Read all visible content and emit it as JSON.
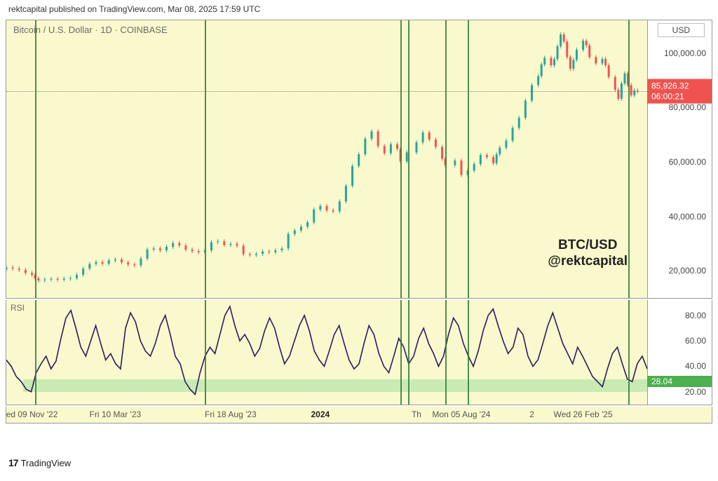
{
  "header": {
    "publisher": "rektcapital published on TradingView.com, Mar 08, 2025 17:59 UTC"
  },
  "price_chart": {
    "symbol": "Bitcoin / U.S. Dollar · 1D · COINBASE",
    "currency": "USD",
    "current_price": "85,926.32",
    "countdown": "06:00:21",
    "watermark_line1": "BTC/USD",
    "watermark_line2": "@rektcapital",
    "ylim": [
      10000,
      112000
    ],
    "yticks": [
      20000,
      40000,
      60000,
      80000,
      100000
    ],
    "ytick_labels": [
      "20,000.00",
      "40,000.00",
      "60,000.00",
      "80,000.00",
      "100,000.00"
    ],
    "background_color": "#f9f9cd",
    "up_color": "#26a69a",
    "down_color": "#ef5350",
    "vline_color": "#2e7d32",
    "vline_positions_pct": [
      4.5,
      31.0,
      61.5,
      62.7,
      68.5,
      72.0,
      97.0
    ],
    "data": [
      {
        "x": 0.0,
        "o": 20500,
        "c": 21200
      },
      {
        "x": 0.01,
        "o": 21200,
        "c": 20800
      },
      {
        "x": 0.02,
        "o": 20800,
        "c": 20300
      },
      {
        "x": 0.03,
        "o": 20300,
        "c": 19200
      },
      {
        "x": 0.04,
        "o": 19200,
        "c": 18500
      },
      {
        "x": 0.045,
        "o": 18500,
        "c": 17200
      },
      {
        "x": 0.05,
        "o": 17200,
        "c": 16500
      },
      {
        "x": 0.06,
        "o": 16500,
        "c": 16800
      },
      {
        "x": 0.07,
        "o": 16800,
        "c": 17000
      },
      {
        "x": 0.08,
        "o": 17000,
        "c": 16700
      },
      {
        "x": 0.09,
        "o": 16700,
        "c": 17100
      },
      {
        "x": 0.1,
        "o": 17100,
        "c": 17300
      },
      {
        "x": 0.11,
        "o": 17300,
        "c": 18500
      },
      {
        "x": 0.12,
        "o": 18500,
        "c": 20800
      },
      {
        "x": 0.13,
        "o": 20800,
        "c": 22500
      },
      {
        "x": 0.14,
        "o": 22500,
        "c": 23200
      },
      {
        "x": 0.15,
        "o": 23200,
        "c": 22600
      },
      {
        "x": 0.16,
        "o": 22600,
        "c": 23800
      },
      {
        "x": 0.17,
        "o": 23800,
        "c": 24200
      },
      {
        "x": 0.18,
        "o": 24200,
        "c": 23100
      },
      {
        "x": 0.19,
        "o": 23100,
        "c": 22300
      },
      {
        "x": 0.2,
        "o": 22300,
        "c": 22000
      },
      {
        "x": 0.21,
        "o": 22000,
        "c": 24500
      },
      {
        "x": 0.22,
        "o": 24500,
        "c": 27800
      },
      {
        "x": 0.23,
        "o": 27800,
        "c": 28200
      },
      {
        "x": 0.24,
        "o": 28200,
        "c": 27500
      },
      {
        "x": 0.25,
        "o": 27500,
        "c": 28800
      },
      {
        "x": 0.26,
        "o": 28800,
        "c": 30200
      },
      {
        "x": 0.27,
        "o": 30200,
        "c": 29300
      },
      {
        "x": 0.28,
        "o": 29300,
        "c": 27800
      },
      {
        "x": 0.29,
        "o": 27800,
        "c": 27200
      },
      {
        "x": 0.3,
        "o": 27200,
        "c": 26800
      },
      {
        "x": 0.31,
        "o": 26800,
        "c": 27500
      },
      {
        "x": 0.32,
        "o": 27500,
        "c": 30500
      },
      {
        "x": 0.33,
        "o": 30500,
        "c": 30800
      },
      {
        "x": 0.34,
        "o": 30800,
        "c": 29500
      },
      {
        "x": 0.35,
        "o": 29500,
        "c": 29900
      },
      {
        "x": 0.36,
        "o": 29900,
        "c": 29200
      },
      {
        "x": 0.37,
        "o": 29200,
        "c": 26100
      },
      {
        "x": 0.38,
        "o": 26100,
        "c": 25800
      },
      {
        "x": 0.39,
        "o": 25800,
        "c": 26200
      },
      {
        "x": 0.4,
        "o": 26200,
        "c": 27100
      },
      {
        "x": 0.41,
        "o": 27100,
        "c": 26800
      },
      {
        "x": 0.42,
        "o": 26800,
        "c": 27500
      },
      {
        "x": 0.43,
        "o": 27500,
        "c": 28200
      },
      {
        "x": 0.44,
        "o": 28200,
        "c": 33500
      },
      {
        "x": 0.45,
        "o": 33500,
        "c": 34800
      },
      {
        "x": 0.46,
        "o": 34800,
        "c": 36200
      },
      {
        "x": 0.47,
        "o": 36200,
        "c": 37800
      },
      {
        "x": 0.48,
        "o": 37800,
        "c": 42500
      },
      {
        "x": 0.49,
        "o": 42500,
        "c": 43800
      },
      {
        "x": 0.5,
        "o": 43800,
        "c": 42200
      },
      {
        "x": 0.51,
        "o": 42200,
        "c": 41800
      },
      {
        "x": 0.52,
        "o": 41800,
        "c": 45500
      },
      {
        "x": 0.53,
        "o": 45500,
        "c": 51200
      },
      {
        "x": 0.54,
        "o": 51200,
        "c": 58500
      },
      {
        "x": 0.55,
        "o": 58500,
        "c": 62800
      },
      {
        "x": 0.56,
        "o": 62800,
        "c": 68500
      },
      {
        "x": 0.57,
        "o": 68500,
        "c": 71200
      },
      {
        "x": 0.58,
        "o": 71200,
        "c": 65800
      },
      {
        "x": 0.59,
        "o": 65800,
        "c": 63200
      },
      {
        "x": 0.6,
        "o": 63200,
        "c": 66500
      },
      {
        "x": 0.61,
        "o": 66500,
        "c": 64800
      },
      {
        "x": 0.615,
        "o": 64800,
        "c": 60200
      },
      {
        "x": 0.625,
        "o": 60200,
        "c": 63500
      },
      {
        "x": 0.64,
        "o": 63500,
        "c": 67200
      },
      {
        "x": 0.65,
        "o": 67200,
        "c": 70800
      },
      {
        "x": 0.66,
        "o": 70800,
        "c": 68200
      },
      {
        "x": 0.67,
        "o": 68200,
        "c": 65500
      },
      {
        "x": 0.68,
        "o": 65500,
        "c": 61200
      },
      {
        "x": 0.685,
        "o": 61200,
        "c": 58800
      },
      {
        "x": 0.7,
        "o": 58800,
        "c": 60500
      },
      {
        "x": 0.71,
        "o": 60500,
        "c": 55200
      },
      {
        "x": 0.72,
        "o": 55200,
        "c": 56800
      },
      {
        "x": 0.73,
        "o": 56800,
        "c": 59200
      },
      {
        "x": 0.74,
        "o": 59200,
        "c": 62500
      },
      {
        "x": 0.75,
        "o": 62500,
        "c": 61800
      },
      {
        "x": 0.76,
        "o": 61800,
        "c": 59500
      },
      {
        "x": 0.765,
        "o": 59500,
        "c": 62800
      },
      {
        "x": 0.77,
        "o": 62800,
        "c": 65200
      },
      {
        "x": 0.78,
        "o": 65200,
        "c": 67800
      },
      {
        "x": 0.79,
        "o": 67800,
        "c": 72500
      },
      {
        "x": 0.8,
        "o": 72500,
        "c": 76200
      },
      {
        "x": 0.81,
        "o": 76200,
        "c": 82500
      },
      {
        "x": 0.82,
        "o": 82500,
        "c": 88200
      },
      {
        "x": 0.83,
        "o": 88200,
        "c": 91500
      },
      {
        "x": 0.835,
        "o": 91500,
        "c": 95800
      },
      {
        "x": 0.84,
        "o": 95800,
        "c": 98200
      },
      {
        "x": 0.85,
        "o": 98200,
        "c": 95500
      },
      {
        "x": 0.855,
        "o": 95500,
        "c": 97800
      },
      {
        "x": 0.86,
        "o": 97800,
        "c": 102500
      },
      {
        "x": 0.865,
        "o": 102500,
        "c": 106800
      },
      {
        "x": 0.87,
        "o": 106800,
        "c": 104200
      },
      {
        "x": 0.875,
        "o": 104200,
        "c": 98500
      },
      {
        "x": 0.88,
        "o": 98500,
        "c": 94200
      },
      {
        "x": 0.885,
        "o": 94200,
        "c": 97500
      },
      {
        "x": 0.89,
        "o": 97500,
        "c": 101200
      },
      {
        "x": 0.9,
        "o": 101200,
        "c": 104500
      },
      {
        "x": 0.905,
        "o": 104500,
        "c": 102800
      },
      {
        "x": 0.91,
        "o": 102800,
        "c": 98500
      },
      {
        "x": 0.92,
        "o": 98500,
        "c": 96200
      },
      {
        "x": 0.93,
        "o": 96200,
        "c": 97800
      },
      {
        "x": 0.935,
        "o": 97800,
        "c": 95500
      },
      {
        "x": 0.94,
        "o": 95500,
        "c": 91200
      },
      {
        "x": 0.95,
        "o": 91200,
        "c": 86500
      },
      {
        "x": 0.955,
        "o": 86500,
        "c": 83200
      },
      {
        "x": 0.96,
        "o": 83200,
        "c": 88800
      },
      {
        "x": 0.965,
        "o": 88800,
        "c": 92500
      },
      {
        "x": 0.97,
        "o": 92500,
        "c": 88200
      },
      {
        "x": 0.975,
        "o": 88200,
        "c": 84500
      },
      {
        "x": 0.98,
        "o": 84500,
        "c": 86200
      },
      {
        "x": 0.985,
        "o": 86200,
        "c": 85926
      }
    ]
  },
  "rsi_chart": {
    "label": "RSI",
    "ylim": [
      10,
      92
    ],
    "yticks": [
      20,
      40,
      60,
      80
    ],
    "ytick_labels": [
      "20.00",
      "40.00",
      "60.00",
      "80.00"
    ],
    "current_value": "28.04",
    "band": {
      "low": 20,
      "high": 30,
      "color": "#b5e6a8"
    },
    "line_color": "#2b1a5f",
    "data": [
      45,
      40,
      32,
      28,
      22,
      20,
      35,
      42,
      48,
      38,
      44,
      62,
      78,
      84,
      70,
      55,
      48,
      60,
      72,
      58,
      45,
      50,
      42,
      38,
      70,
      82,
      75,
      60,
      52,
      48,
      58,
      72,
      80,
      65,
      48,
      42,
      28,
      22,
      18,
      35,
      48,
      55,
      50,
      65,
      80,
      87,
      72,
      60,
      65,
      58,
      48,
      54,
      68,
      78,
      70,
      55,
      42,
      48,
      60,
      72,
      80,
      68,
      52,
      45,
      40,
      52,
      65,
      72,
      58,
      45,
      38,
      42,
      58,
      72,
      65,
      50,
      40,
      35,
      48,
      62,
      55,
      42,
      48,
      62,
      70,
      58,
      50,
      40,
      48,
      65,
      78,
      72,
      58,
      48,
      40,
      52,
      68,
      80,
      85,
      72,
      60,
      50,
      55,
      70,
      65,
      48,
      40,
      45,
      58,
      72,
      82,
      70,
      58,
      50,
      42,
      55,
      48,
      40,
      32,
      28,
      24,
      38,
      50,
      55,
      42,
      30,
      28,
      42,
      48,
      38
    ]
  },
  "xaxis": {
    "labels": [
      {
        "pos_pct": 4,
        "text": "ed 09 Nov '22"
      },
      {
        "pos_pct": 17,
        "text": "Fri 10 Mar '23"
      },
      {
        "pos_pct": 35,
        "text": "Fri 18 Aug '23"
      },
      {
        "pos_pct": 49,
        "text": "2024",
        "bold": true
      },
      {
        "pos_pct": 64,
        "text": "Th"
      },
      {
        "pos_pct": 71,
        "text": "Mon 05 Aug '24"
      },
      {
        "pos_pct": 82,
        "text": "2"
      },
      {
        "pos_pct": 90,
        "text": "Wed 26 Feb '25"
      }
    ]
  },
  "footer": {
    "logo_text": "TradingView"
  }
}
